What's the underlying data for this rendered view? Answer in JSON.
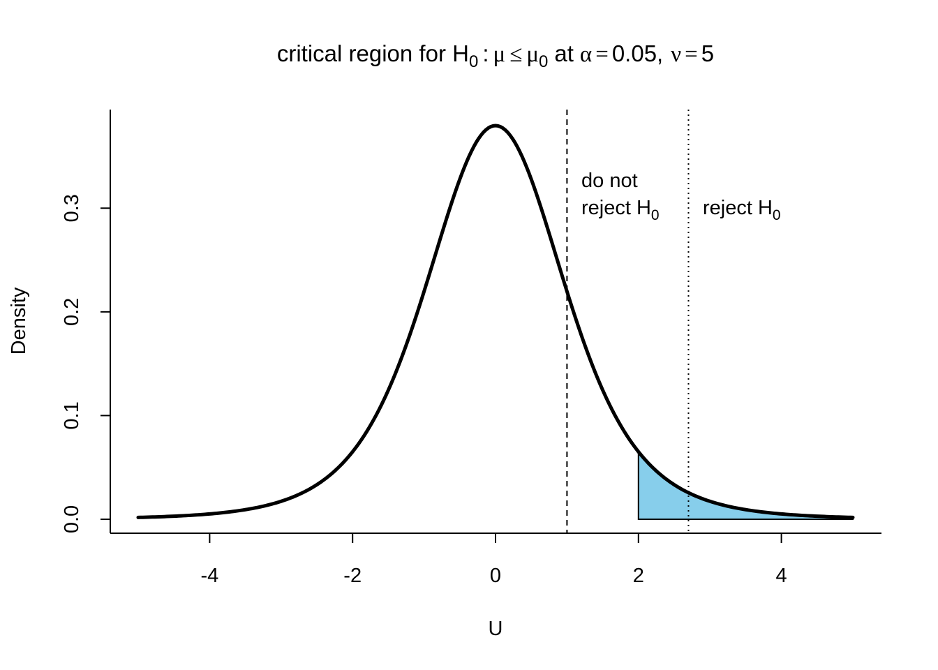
{
  "chart_data": {
    "type": "area",
    "title": {
      "prefix": "critical region for H",
      "sub": "0",
      "colon": ":",
      "mu": "μ",
      "le": "≤",
      "mu0": "μ",
      "mu0_sub": "0",
      "at": "at",
      "alpha": "α",
      "alpha_eq": "=",
      "alpha_val": "0.05,",
      "nu": "ν",
      "nu_eq": "=",
      "nu_val": "5"
    },
    "xlabel": "U",
    "ylabel": "Density",
    "xlim": [
      -5,
      5
    ],
    "ylim": [
      0,
      0.3796
    ],
    "x_ticks": [
      -4,
      -2,
      0,
      2,
      4
    ],
    "x_tick_labels": [
      "-4",
      "-2",
      "0",
      "2",
      "4"
    ],
    "y_ticks": [
      0.0,
      0.1,
      0.2,
      0.3
    ],
    "y_tick_labels": [
      "0.0",
      "0.1",
      "0.2",
      "0.3"
    ],
    "distribution": "Student t",
    "degrees_of_freedom": 5,
    "curve": {
      "x": [
        -5.0,
        -4.5,
        -4.0,
        -3.5,
        -3.0,
        -2.5,
        -2.0,
        -1.5,
        -1.0,
        -0.5,
        0.0,
        0.5,
        1.0,
        1.5,
        2.0,
        2.5,
        3.0,
        3.5,
        4.0,
        4.5,
        5.0
      ],
      "y": [
        0.0018,
        0.0028,
        0.0051,
        0.0094,
        0.0173,
        0.0329,
        0.0651,
        0.1245,
        0.2197,
        0.3279,
        0.3796,
        0.3279,
        0.2197,
        0.1245,
        0.0651,
        0.0329,
        0.0173,
        0.0094,
        0.0051,
        0.0028,
        0.0018
      ]
    },
    "shaded_region": {
      "from": 2.0,
      "to": 5.0,
      "color": "#87CEEB"
    },
    "vlines": [
      {
        "x": 1.0,
        "style": "dashed"
      },
      {
        "x": 2.7,
        "style": "dotted"
      }
    ],
    "annotations": {
      "do_not_line1": "do not",
      "do_not_line2": "reject H",
      "do_not_sub": "0",
      "reject": "reject H",
      "reject_sub": "0"
    },
    "curve_color": "#000000"
  }
}
